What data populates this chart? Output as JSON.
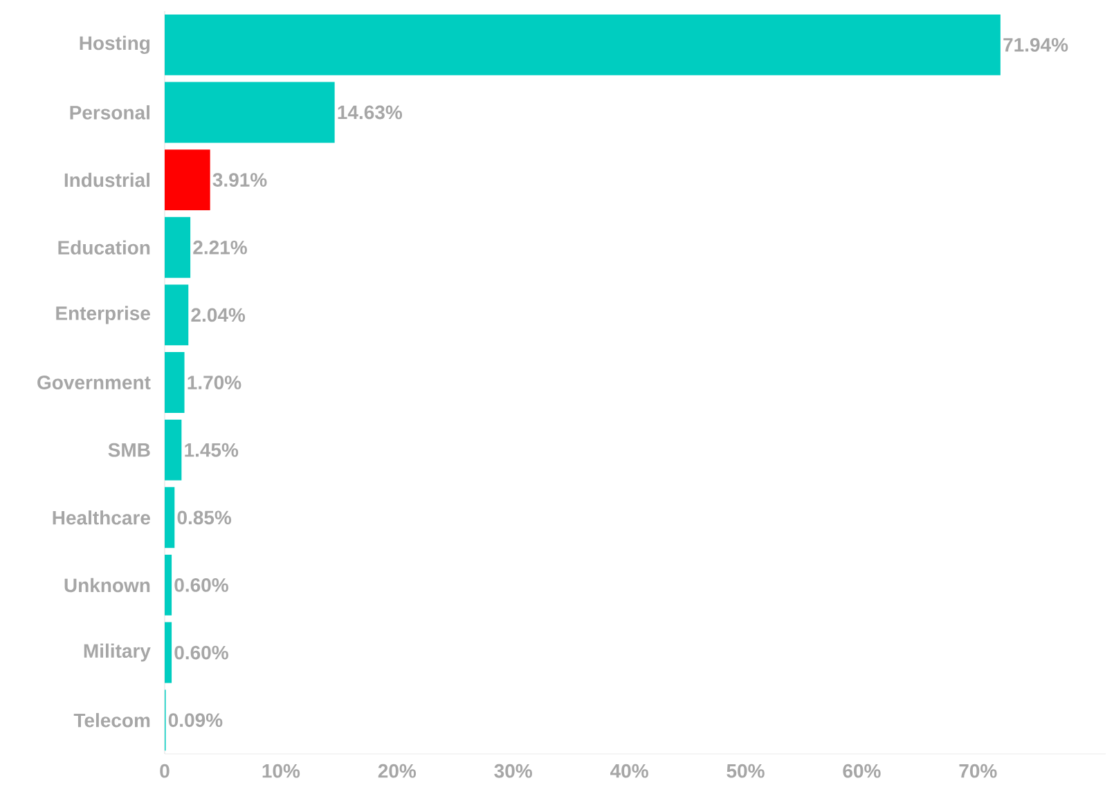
{
  "chart_data": {
    "type": "bar",
    "orientation": "horizontal",
    "categories": [
      "Hosting",
      "Personal",
      "Industrial",
      "Education",
      "Enterprise",
      "Government",
      "SMB",
      "Healthcare",
      "Unknown",
      "Military",
      "Telecom"
    ],
    "values": [
      71.94,
      14.63,
      3.91,
      2.21,
      2.04,
      1.7,
      1.45,
      0.85,
      0.6,
      0.6,
      0.09
    ],
    "value_labels": [
      "71.94%",
      "14.63%",
      "3.91%",
      "2.21%",
      "2.04%",
      "1.70%",
      "1.45%",
      "0.85%",
      "0.60%",
      "0.60%",
      "0.09%"
    ],
    "colors": [
      "#00cdc0",
      "#00cdc0",
      "#ff0000",
      "#00cdc0",
      "#00cdc0",
      "#00cdc0",
      "#00cdc0",
      "#00cdc0",
      "#00cdc0",
      "#00cdc0",
      "#00cdc0"
    ],
    "xlim": [
      0,
      81
    ],
    "xticks": [
      {
        "value": 0,
        "label": "0"
      },
      {
        "value": 10,
        "label": "10%"
      },
      {
        "value": 20,
        "label": "20%"
      },
      {
        "value": 30,
        "label": "30%"
      },
      {
        "value": 40,
        "label": "40%"
      },
      {
        "value": 50,
        "label": "50%"
      },
      {
        "value": 60,
        "label": "60%"
      },
      {
        "value": 70,
        "label": "70%"
      }
    ],
    "grid": false
  }
}
